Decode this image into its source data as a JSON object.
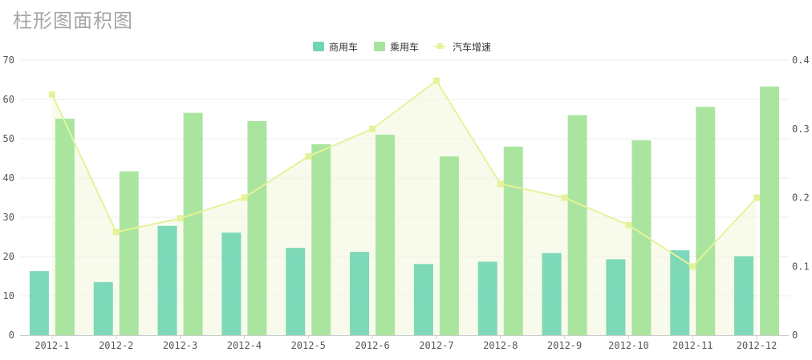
{
  "chart_data": {
    "type": "bar",
    "title": "柱形图面积图",
    "categories": [
      "2012-1",
      "2012-2",
      "2012-3",
      "2012-4",
      "2012-5",
      "2012-6",
      "2012-7",
      "2012-8",
      "2012-9",
      "2012-10",
      "2012-11",
      "2012-12"
    ],
    "series": [
      {
        "name": "商用车",
        "type": "bar",
        "axis": "left",
        "color": "#6fd5b3",
        "values": [
          16.3,
          13.5,
          27.8,
          26.1,
          22.2,
          21.2,
          18.1,
          18.7,
          20.9,
          19.3,
          21.6,
          20.1
        ]
      },
      {
        "name": "乘用车",
        "type": "bar",
        "axis": "left",
        "color": "#a5e49b",
        "values": [
          55.1,
          41.7,
          56.6,
          54.5,
          48.6,
          51.0,
          45.5,
          48.0,
          56.0,
          49.6,
          58.1,
          63.3
        ]
      },
      {
        "name": "汽车增速",
        "type": "area-line",
        "axis": "right",
        "color": "#e6f29a",
        "values": [
          0.35,
          0.15,
          0.17,
          0.2,
          0.26,
          0.3,
          0.37,
          0.22,
          0.2,
          0.16,
          0.1,
          0.2
        ]
      }
    ],
    "ylim_left": [
      0,
      70
    ],
    "yticks_left": [
      "0",
      "10",
      "20",
      "30",
      "40",
      "50",
      "60",
      "70"
    ],
    "ylim_right": [
      0,
      0.4
    ],
    "yticks_right": [
      "0",
      "0.1",
      "0.2",
      "0.3",
      "0.4"
    ],
    "grid": true,
    "legend_position": "top-center"
  }
}
